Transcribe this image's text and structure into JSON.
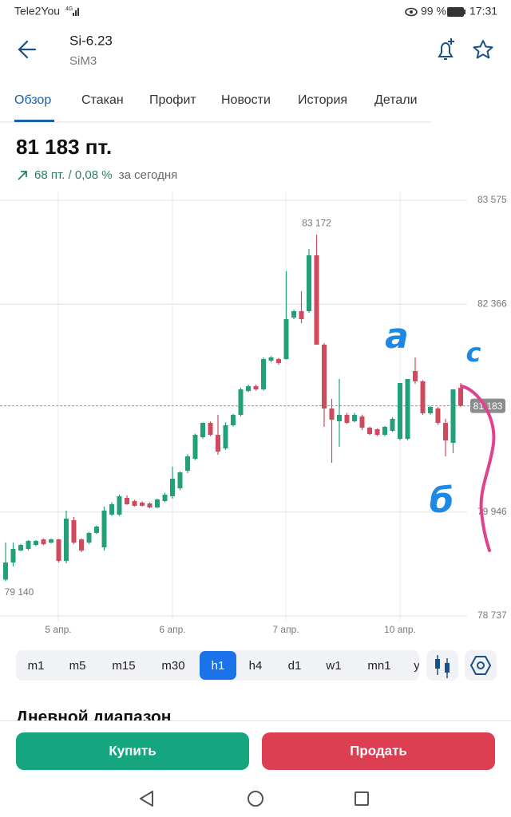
{
  "status_bar": {
    "carrier": "Tele2You",
    "battery": "99 %",
    "time": "17:31"
  },
  "header": {
    "title": "Si-6.23",
    "subtitle": "SiM3"
  },
  "tabs": [
    "Обзор",
    "Стакан",
    "Профит",
    "Новости",
    "История",
    "Детали"
  ],
  "quote": {
    "price": "81 183 пт.",
    "change": "68 пт. / 0,08 %",
    "period": "за сегодня"
  },
  "chart_data": {
    "type": "candlestick",
    "open": [
      79160,
      79359,
      79498,
      79517,
      79563,
      79628,
      79591,
      79628,
      79378,
      79851,
      79628,
      79591,
      79703,
      79535,
      79916,
      79916,
      80111,
      80074,
      80056,
      80046,
      80000,
      80074,
      80130,
      80223,
      80427,
      80566,
      80817,
      80984,
      80845,
      80687,
      80956,
      81077,
      81355,
      81411,
      81374,
      81708,
      81727,
      81727,
      82210,
      82284,
      82284,
      82934,
      81894,
      81151,
      81003,
      81077,
      81003,
      81058,
      80928,
      80910,
      80845,
      80891,
      80798,
      80798,
      81588,
      81467,
      81096,
      81151,
      80984,
      80752,
      81392
    ],
    "high": [
      79591,
      79591,
      79575,
      79620,
      79620,
      79640,
      79640,
      79635,
      79963,
      79889,
      79640,
      79715,
      79790,
      80009,
      80060,
      80150,
      80140,
      80090,
      80070,
      80060,
      80100,
      80170,
      80473,
      80420,
      80620,
      80860,
      80990,
      81000,
      81077,
      80990,
      81090,
      81392,
      81430,
      81430,
      81746,
      81760,
      81740,
      82749,
      82300,
      82516,
      83009,
      83172,
      81913,
      81263,
      81495,
      81100,
      81100,
      81080,
      80940,
      80920,
      80950,
      81050,
      81448,
      81495,
      81746,
      81480,
      81180,
      81170,
      81031,
      81374,
      81448
    ],
    "low": [
      79140,
      79313,
      79490,
      79500,
      79550,
      79560,
      79580,
      79359,
      79350,
      79573,
      79480,
      79570,
      79690,
      79498,
      79900,
      79900,
      80030,
      80010,
      80010,
      79990,
      79990,
      80060,
      80102,
      80200,
      80400,
      80550,
      80800,
      80830,
      80613,
      80670,
      80940,
      81060,
      81340,
      81360,
      81360,
      81690,
      81660,
      81720,
      82190,
      82145,
      82265,
      81894,
      80938,
      80520,
      80706,
      80970,
      80990,
      80900,
      80840,
      80830,
      80830,
      80880,
      80780,
      80780,
      81440,
      81077,
      81080,
      80960,
      80594,
      80631,
      81170
    ],
    "close": [
      79359,
      79517,
      79563,
      79610,
      79610,
      79573,
      79628,
      79378,
      79870,
      79591,
      79498,
      79703,
      79777,
      79963,
      80037,
      80130,
      80037,
      80019,
      80019,
      80000,
      80093,
      80148,
      80334,
      80408,
      80594,
      80845,
      80984,
      80845,
      80650,
      80956,
      81077,
      81374,
      81411,
      81374,
      81727,
      81746,
      81681,
      82191,
      82284,
      82191,
      82934,
      81894,
      81151,
      81021,
      81077,
      80984,
      81077,
      80928,
      80854,
      80845,
      80938,
      81031,
      81448,
      81495,
      81467,
      81096,
      81170,
      80984,
      80780,
      81374,
      81183
    ],
    "up_color": "#22a07a",
    "down_color": "#d04a5e",
    "ylim": [
      78737,
      83575
    ],
    "yticks": [
      {
        "value": 83575,
        "label": "83 575"
      },
      {
        "value": 82366,
        "label": "82 366"
      },
      {
        "value": 79946,
        "label": "79 946"
      },
      {
        "value": 78737,
        "label": "78 737"
      }
    ],
    "xticks": [
      "5 апр.",
      "6 апр.",
      "7 апр.",
      "10 апр."
    ],
    "grid": true,
    "price_line": {
      "value": 81183,
      "label": "81 183"
    },
    "annotations": [
      {
        "value": 83172,
        "label": "83 172"
      },
      {
        "value": 79140,
        "label": "79 140"
      }
    ],
    "handwritten_marks": [
      "а",
      "с",
      "б"
    ]
  },
  "timeframes": [
    "m1",
    "m5",
    "m15",
    "m30",
    "h1",
    "h4",
    "d1",
    "w1",
    "mn1",
    "y"
  ],
  "section_title": "Дневной диапазон",
  "buttons": {
    "buy": "Купить",
    "sell": "Продать"
  }
}
